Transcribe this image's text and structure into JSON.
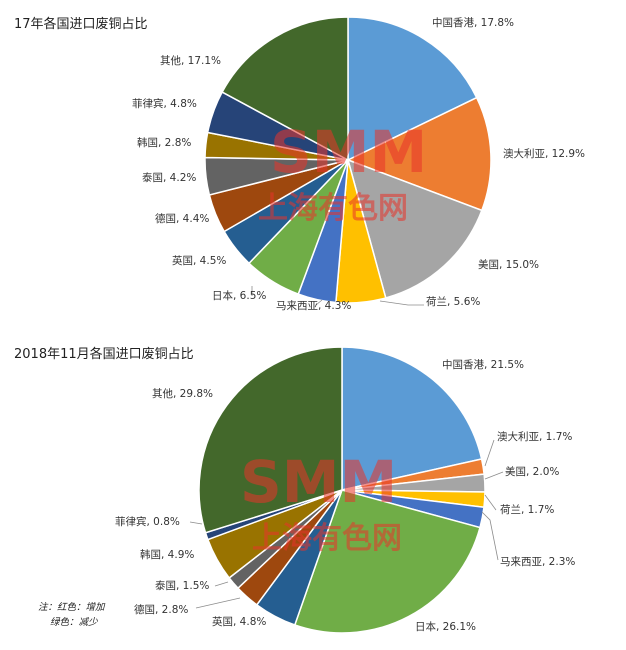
{
  "colors": {
    "increase": "#e8202a",
    "decrease": "#2ea043",
    "normal": "#333333",
    "watermark": "#e8342a"
  },
  "watermark": {
    "brand": "SMM",
    "cn": "上海有色网"
  },
  "note": {
    "line1": "注：红色：增加",
    "line2": "绿色：减少"
  },
  "chart_data": [
    {
      "type": "pie",
      "title": "17年各国进口废铜占比",
      "slices": [
        {
          "name": "中国香港",
          "value": 17.8,
          "label": "中国香港, 17.8%",
          "color": "#5b9bd5",
          "status": "normal"
        },
        {
          "name": "澳大利亚",
          "value": 12.9,
          "label": "澳大利亚, 12.9%",
          "color": "#ed7d31",
          "status": "normal"
        },
        {
          "name": "美国",
          "value": 15.0,
          "label": "美国, 15.0%",
          "color": "#a5a5a5",
          "status": "normal"
        },
        {
          "name": "荷兰",
          "value": 5.6,
          "label": "荷兰, 5.6%",
          "color": "#ffc000",
          "status": "normal"
        },
        {
          "name": "马来西亚",
          "value": 4.3,
          "label": "马来西亚, 4.3%",
          "color": "#4472c4",
          "status": "normal"
        },
        {
          "name": "日本",
          "value": 6.5,
          "label": "日本, 6.5%",
          "color": "#70ad47",
          "status": "normal"
        },
        {
          "name": "英国",
          "value": 4.5,
          "label": "英国, 4.5%",
          "color": "#255e91",
          "status": "normal"
        },
        {
          "name": "德国",
          "value": 4.4,
          "label": "德国, 4.4%",
          "color": "#9e480e",
          "status": "normal"
        },
        {
          "name": "泰国",
          "value": 4.2,
          "label": "泰国, 4.2%",
          "color": "#636363",
          "status": "normal"
        },
        {
          "name": "韩国",
          "value": 2.8,
          "label": "韩国, 2.8%",
          "color": "#997300",
          "status": "normal"
        },
        {
          "name": "菲律宾",
          "value": 4.8,
          "label": "菲律宾, 4.8%",
          "color": "#264478",
          "status": "normal"
        },
        {
          "name": "其他",
          "value": 17.1,
          "label": "其他, 17.1%",
          "color": "#43682b",
          "status": "normal"
        }
      ]
    },
    {
      "type": "pie",
      "title": "2018年11月各国进口废铜占比",
      "slices": [
        {
          "name": "中国香港",
          "value": 21.5,
          "label": "中国香港, 21.5%",
          "color": "#5b9bd5",
          "status": "increase"
        },
        {
          "name": "澳大利亚",
          "value": 1.7,
          "label": "澳大利亚, 1.7%",
          "color": "#ed7d31",
          "status": "decrease"
        },
        {
          "name": "美国",
          "value": 2.0,
          "label": "美国, 2.0%",
          "color": "#a5a5a5",
          "status": "decrease"
        },
        {
          "name": "荷兰",
          "value": 1.7,
          "label": "荷兰, 1.7%",
          "color": "#ffc000",
          "status": "normal"
        },
        {
          "name": "马来西亚",
          "value": 2.3,
          "label": "马来西亚, 2.3%",
          "color": "#4472c4",
          "status": "normal"
        },
        {
          "name": "日本",
          "value": 26.1,
          "label": "日本, 26.1%",
          "color": "#70ad47",
          "status": "increase"
        },
        {
          "name": "英国",
          "value": 4.8,
          "label": "英国, 4.8%",
          "color": "#255e91",
          "status": "normal"
        },
        {
          "name": "德国",
          "value": 2.8,
          "label": "德国, 2.8%",
          "color": "#9e480e",
          "status": "normal"
        },
        {
          "name": "泰国",
          "value": 1.5,
          "label": "泰国, 1.5%",
          "color": "#636363",
          "status": "normal"
        },
        {
          "name": "韩国",
          "value": 4.9,
          "label": "韩国, 4.9%",
          "color": "#997300",
          "status": "normal"
        },
        {
          "name": "菲律宾",
          "value": 0.8,
          "label": "菲律宾, 0.8%",
          "color": "#264478",
          "status": "normal"
        },
        {
          "name": "其他",
          "value": 29.8,
          "label": "其他, 29.8%",
          "color": "#43682b",
          "status": "normal"
        }
      ]
    }
  ]
}
